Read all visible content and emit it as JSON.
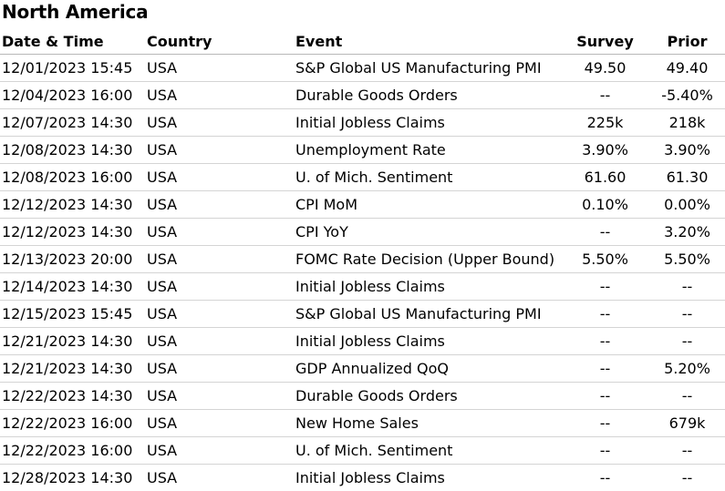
{
  "title": "North America",
  "columns": {
    "date": "Date & Time",
    "country": "Country",
    "event": "Event",
    "survey": "Survey",
    "prior": "Prior"
  },
  "rows": [
    {
      "date": "12/01/2023 15:45",
      "country": "USA",
      "event": "S&P Global US Manufacturing PMI",
      "survey": "49.50",
      "prior": "49.40"
    },
    {
      "date": "12/04/2023 16:00",
      "country": "USA",
      "event": "Durable Goods Orders",
      "survey": "--",
      "prior": "-5.40%"
    },
    {
      "date": "12/07/2023 14:30",
      "country": "USA",
      "event": "Initial Jobless Claims",
      "survey": "225k",
      "prior": "218k"
    },
    {
      "date": "12/08/2023 14:30",
      "country": "USA",
      "event": "Unemployment Rate",
      "survey": "3.90%",
      "prior": "3.90%"
    },
    {
      "date": "12/08/2023 16:00",
      "country": "USA",
      "event": "U. of Mich. Sentiment",
      "survey": "61.60",
      "prior": "61.30"
    },
    {
      "date": "12/12/2023 14:30",
      "country": "USA",
      "event": "CPI MoM",
      "survey": "0.10%",
      "prior": "0.00%"
    },
    {
      "date": "12/12/2023 14:30",
      "country": "USA",
      "event": "CPI YoY",
      "survey": "--",
      "prior": "3.20%"
    },
    {
      "date": "12/13/2023 20:00",
      "country": "USA",
      "event": "FOMC Rate Decision (Upper Bound)",
      "survey": "5.50%",
      "prior": "5.50%"
    },
    {
      "date": "12/14/2023 14:30",
      "country": "USA",
      "event": "Initial Jobless Claims",
      "survey": "--",
      "prior": "--"
    },
    {
      "date": "12/15/2023 15:45",
      "country": "USA",
      "event": "S&P Global US Manufacturing PMI",
      "survey": "--",
      "prior": "--"
    },
    {
      "date": "12/21/2023 14:30",
      "country": "USA",
      "event": "Initial Jobless Claims",
      "survey": "--",
      "prior": "--"
    },
    {
      "date": "12/21/2023 14:30",
      "country": "USA",
      "event": "GDP Annualized QoQ",
      "survey": "--",
      "prior": "5.20%"
    },
    {
      "date": "12/22/2023 14:30",
      "country": "USA",
      "event": "Durable Goods Orders",
      "survey": "--",
      "prior": "--"
    },
    {
      "date": "12/22/2023 16:00",
      "country": "USA",
      "event": "New Home Sales",
      "survey": "--",
      "prior": "679k"
    },
    {
      "date": "12/22/2023 16:00",
      "country": "USA",
      "event": "U. of Mich. Sentiment",
      "survey": "--",
      "prior": "--"
    },
    {
      "date": "12/28/2023 14:30",
      "country": "USA",
      "event": "Initial Jobless Claims",
      "survey": "--",
      "prior": "--"
    }
  ]
}
